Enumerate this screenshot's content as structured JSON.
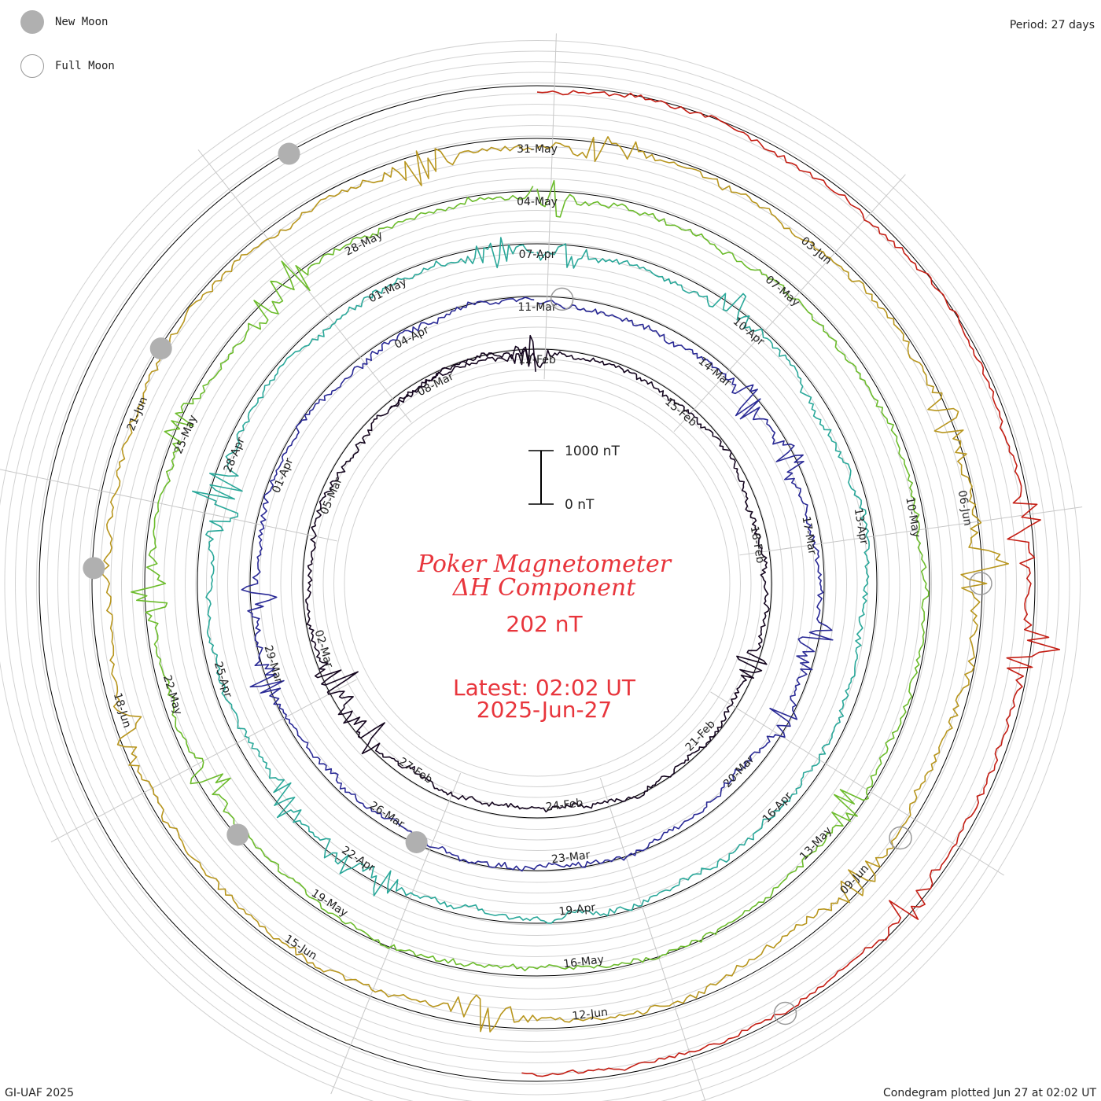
{
  "legend": {
    "new_moon": {
      "label": "New Moon",
      "color": "#b0b0b0"
    },
    "full_moon": {
      "label": "Full Moon",
      "color": "#ffffff"
    }
  },
  "header": {
    "period": "Period: 27 days"
  },
  "footer": {
    "credit": "GI-UAF 2025",
    "plotted": "Condegram plotted Jun 27 at 02:02 UT"
  },
  "center": {
    "title_line1": "Poker Magnetometer",
    "title_line2": "ΔH Component",
    "current_value": "202 nT",
    "latest_line1": "Latest: 02:02 UT",
    "latest_line2": "2025-Jun-27"
  },
  "scale_bar": {
    "top_label": "1000 nT",
    "bottom_label": "0 nT"
  },
  "chart_data": {
    "type": "line",
    "projection": "polar-spiral",
    "period_days": 27,
    "value_unit": "nT",
    "value_scale_nT": [
      0,
      1000
    ],
    "series": [
      {
        "color": "#14051e",
        "noise": 1.0,
        "spikes": 6,
        "labels": [
          {
            "date": "12-Feb",
            "angle": 0
          },
          {
            "date": "15-Feb",
            "angle": 40
          },
          {
            "date": "18-Feb",
            "angle": 80
          },
          {
            "date": "21-Feb",
            "angle": 133
          },
          {
            "date": "24-Feb",
            "angle": 173
          },
          {
            "date": "27-Feb",
            "angle": 213
          },
          {
            "date": "02-Mar",
            "angle": 253
          },
          {
            "date": "05-Mar",
            "angle": 293
          },
          {
            "date": "08-Mar",
            "angle": 333
          }
        ]
      },
      {
        "color": "#2a2a96",
        "noise": 1.1,
        "spikes": 7,
        "labels": [
          {
            "date": "11-Mar",
            "angle": 0
          },
          {
            "date": "14-Mar",
            "angle": 40
          },
          {
            "date": "17-Mar",
            "angle": 80
          },
          {
            "date": "20-Mar",
            "angle": 133
          },
          {
            "date": "23-Mar",
            "angle": 173
          },
          {
            "date": "26-Mar",
            "angle": 213
          },
          {
            "date": "29-Mar",
            "angle": 253
          },
          {
            "date": "01-Apr",
            "angle": 293
          },
          {
            "date": "04-Apr",
            "angle": 333
          }
        ]
      },
      {
        "color": "#2aa89a",
        "noise": 1.2,
        "spikes": 8,
        "labels": [
          {
            "date": "07-Apr",
            "angle": 0
          },
          {
            "date": "10-Apr",
            "angle": 40
          },
          {
            "date": "13-Apr",
            "angle": 80
          },
          {
            "date": "16-Apr",
            "angle": 133
          },
          {
            "date": "19-Apr",
            "angle": 173
          },
          {
            "date": "22-Apr",
            "angle": 213
          },
          {
            "date": "25-Apr",
            "angle": 253
          },
          {
            "date": "28-Apr",
            "angle": 293
          },
          {
            "date": "01-May",
            "angle": 333
          }
        ]
      },
      {
        "color": "#6cbc2c",
        "noise": 1.1,
        "spikes": 7,
        "labels": [
          {
            "date": "04-May",
            "angle": 0
          },
          {
            "date": "07-May",
            "angle": 40
          },
          {
            "date": "10-May",
            "angle": 80
          },
          {
            "date": "13-May",
            "angle": 133
          },
          {
            "date": "16-May",
            "angle": 173
          },
          {
            "date": "19-May",
            "angle": 213
          },
          {
            "date": "22-May",
            "angle": 253
          },
          {
            "date": "25-May",
            "angle": 293
          },
          {
            "date": "28-May",
            "angle": 333
          }
        ]
      },
      {
        "color": "#b8961e",
        "noise": 1.3,
        "spikes": 8,
        "labels": [
          {
            "date": "31-May",
            "angle": 0
          },
          {
            "date": "03-Jun",
            "angle": 40
          },
          {
            "date": "06-Jun",
            "angle": 80
          },
          {
            "date": "09-Jun",
            "angle": 133
          },
          {
            "date": "12-Jun",
            "angle": 173
          },
          {
            "date": "15-Jun",
            "angle": 213
          },
          {
            "date": "18-Jun",
            "angle": 253
          },
          {
            "date": "21-Jun",
            "angle": 293
          }
        ]
      },
      {
        "color": "#c41e14",
        "noise": 1.0,
        "spikes": 4,
        "labels": []
      }
    ],
    "moons": [
      {
        "phase": "new",
        "angle": 330,
        "ring": 5
      },
      {
        "phase": "new",
        "angle": 302,
        "ring": 4
      },
      {
        "phase": "new",
        "angle": 272,
        "ring": 4
      },
      {
        "phase": "new",
        "angle": 230,
        "ring": 3
      },
      {
        "phase": "new",
        "angle": 205,
        "ring": 1
      },
      {
        "phase": "full",
        "angle": 5,
        "ring": 1
      },
      {
        "phase": "full",
        "angle": 90,
        "ring": 4
      },
      {
        "phase": "full",
        "angle": 125,
        "ring": 4
      },
      {
        "phase": "full",
        "angle": 150,
        "ring": 5
      }
    ]
  }
}
